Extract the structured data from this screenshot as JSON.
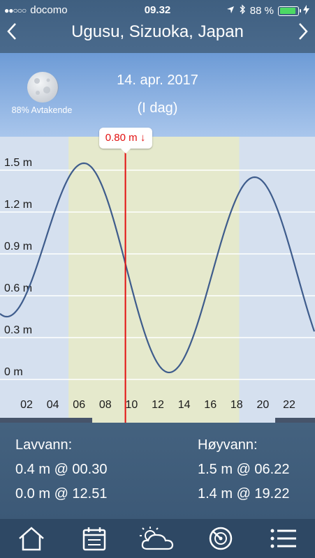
{
  "status_bar": {
    "carrier": "docomo",
    "signal_dots": "●●○○○",
    "time": "09.32",
    "battery_pct": "88 %",
    "battery_level": 0.88
  },
  "nav": {
    "title": "Ugusu, Sizuoka, Japan",
    "back_icon": "chevron-left-icon",
    "forward_icon": "chevron-right-icon"
  },
  "date_panel": {
    "moon_label": "88% Avtakende",
    "date": "14. apr. 2017",
    "today": "(I dag)"
  },
  "chart_data": {
    "type": "line",
    "marker_label": "0.80 m",
    "marker_arrow": "↓",
    "marker_hour": 9.53,
    "y_ticks": [
      "1.5 m",
      "1.2 m",
      "0.9 m",
      "0.6 m",
      "0.3 m",
      "0 m"
    ],
    "y_tick_values": [
      1.5,
      1.2,
      0.9,
      0.6,
      0.3,
      0
    ],
    "x_ticks": [
      "02",
      "04",
      "06",
      "08",
      "10",
      "12",
      "14",
      "16",
      "18",
      "20",
      "22"
    ],
    "x_tick_values": [
      2,
      4,
      6,
      8,
      10,
      12,
      14,
      16,
      18,
      20,
      22
    ],
    "daylight": [
      5.2,
      18.2
    ],
    "series": [
      {
        "x": [
          0.5,
          6.37,
          12.85,
          19.37
        ],
        "y": [
          0.4,
          1.5,
          0.0,
          1.4
        ]
      }
    ]
  },
  "tides": {
    "low_title": "Lavvann:",
    "high_title": "Høyvann:",
    "low": [
      "0.4 m @ 00.30",
      "0.0 m @ 12.51"
    ],
    "high": [
      "1.5 m @ 06.22",
      "1.4 m @ 19.22"
    ]
  },
  "tabbar": {
    "items": [
      "home-icon",
      "calendar-icon",
      "weather-icon",
      "radar-icon",
      "menu-icon"
    ]
  },
  "colors": {
    "curve": "#3e5c8c",
    "marker": "#e21010",
    "daylight": "#e5e9cc"
  }
}
